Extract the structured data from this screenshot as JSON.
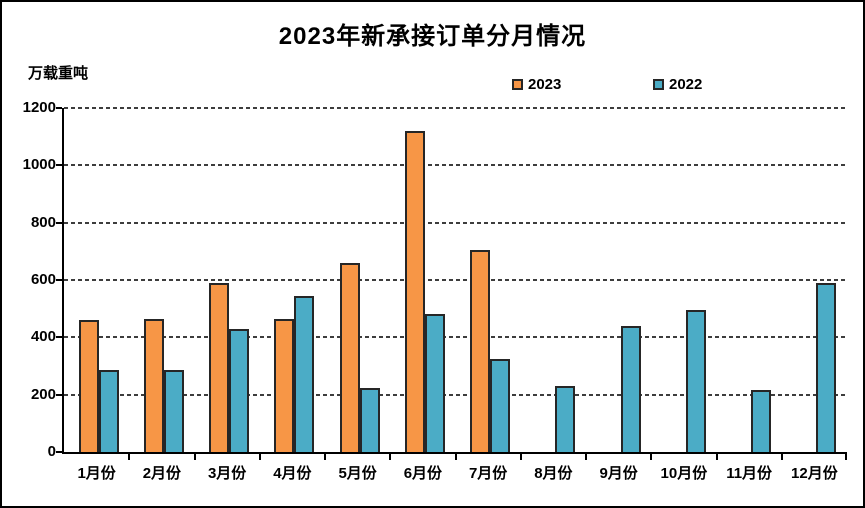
{
  "chart_data": {
    "type": "bar",
    "title": "2023年新承接订单分月情况",
    "unit_label": "万载重吨",
    "categories": [
      "1月份",
      "2月份",
      "3月份",
      "4月份",
      "5月份",
      "6月份",
      "7月份",
      "8月份",
      "9月份",
      "10月份",
      "11月份",
      "12月份"
    ],
    "series": [
      {
        "name": "2023",
        "color": "#F79646",
        "values": [
          460,
          465,
          590,
          465,
          660,
          1120,
          705,
          null,
          null,
          null,
          null,
          null
        ]
      },
      {
        "name": "2022",
        "color": "#4BACC6",
        "values": [
          285,
          285,
          430,
          545,
          225,
          480,
          325,
          230,
          440,
          495,
          215,
          590
        ]
      }
    ],
    "ylim": [
      0,
      1200
    ],
    "ytick_step": 200,
    "yticks": [
      "0",
      "200",
      "400",
      "600",
      "800",
      "1000",
      "1200"
    ],
    "grid": "dashed-horizontal",
    "legend_position": "top-center",
    "bar_outline_color": "#262626",
    "axis_color": "#000000"
  }
}
